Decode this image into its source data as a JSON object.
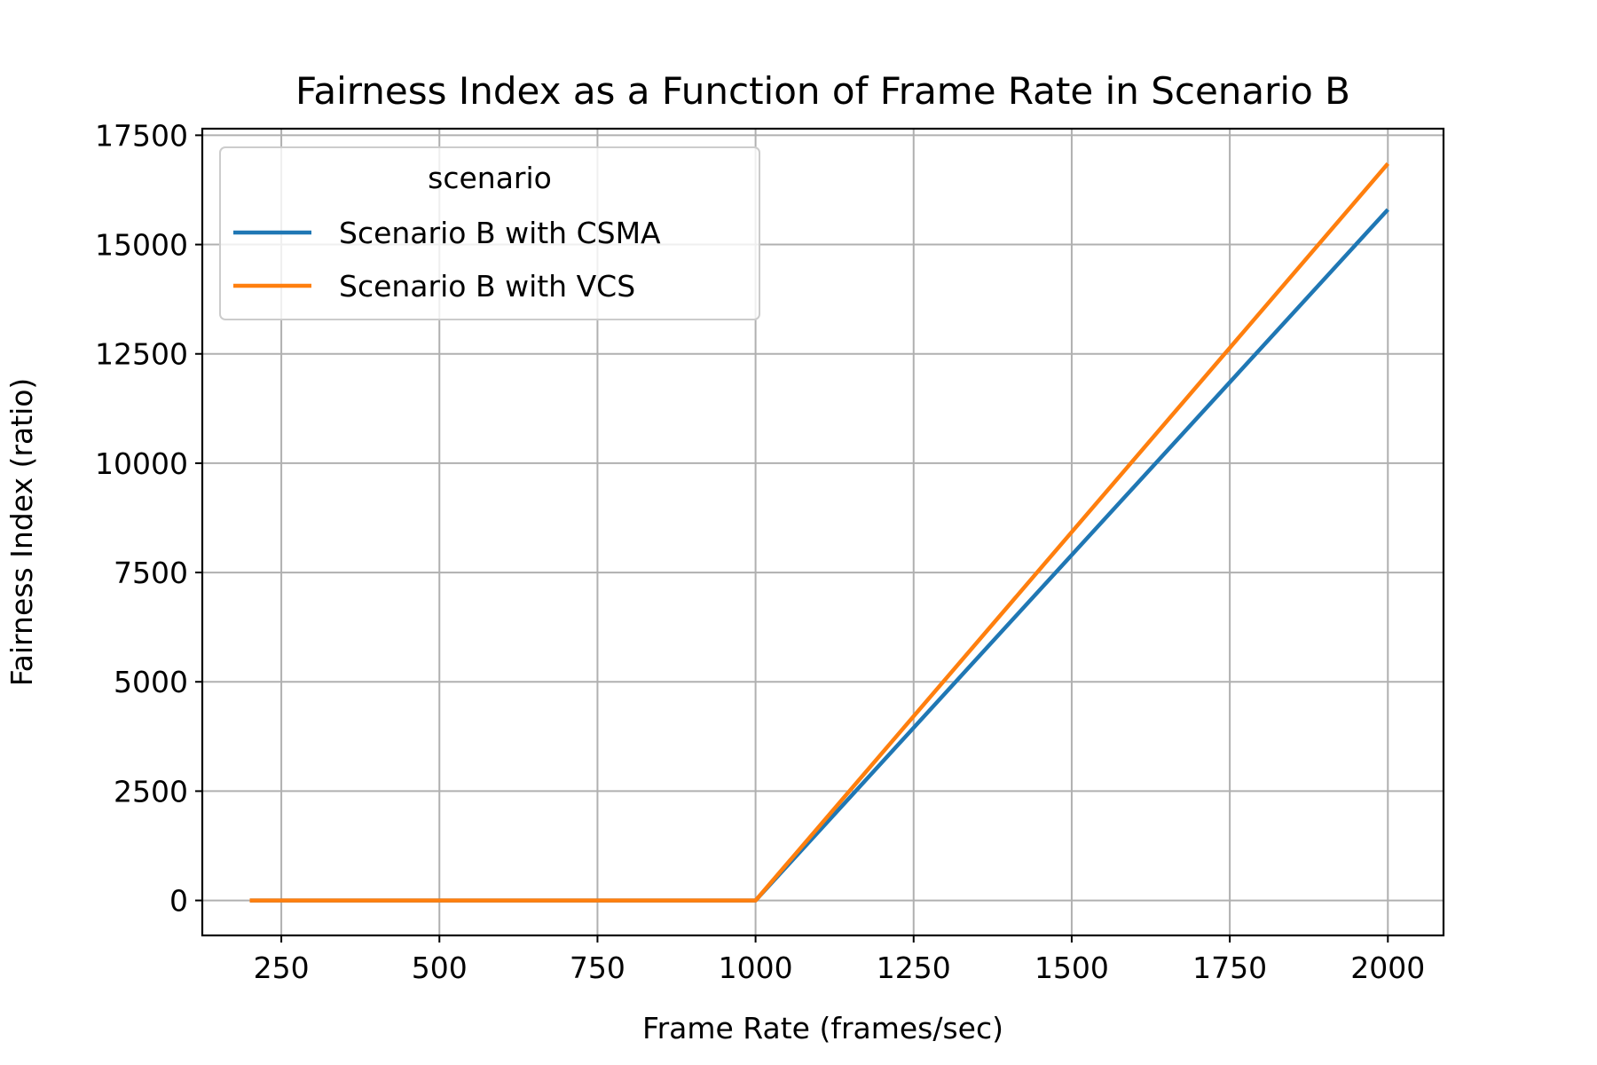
{
  "chart_data": {
    "type": "line",
    "title": "Fairness Index as a Function of Frame Rate in Scenario B",
    "xlabel": "Frame Rate (frames/sec)",
    "ylabel": "Fairness Index (ratio)",
    "xlim": [
      125,
      2088
    ],
    "ylim": [
      -800,
      17650
    ],
    "xticks": [
      250,
      500,
      750,
      1000,
      1250,
      1500,
      1750,
      2000
    ],
    "yticks": [
      0,
      2500,
      5000,
      7500,
      10000,
      12500,
      15000,
      17500
    ],
    "grid": true,
    "legend": {
      "title": "scenario",
      "placement": "top-left"
    },
    "series": [
      {
        "name": "Scenario B with CSMA",
        "color": "#1f77b4",
        "x": [
          200,
          1000,
          2000
        ],
        "y": [
          0,
          0,
          15800
        ]
      },
      {
        "name": "Scenario B with VCS",
        "color": "#ff7f0e",
        "x": [
          200,
          1000,
          2000
        ],
        "y": [
          0,
          0,
          16850
        ]
      }
    ]
  }
}
